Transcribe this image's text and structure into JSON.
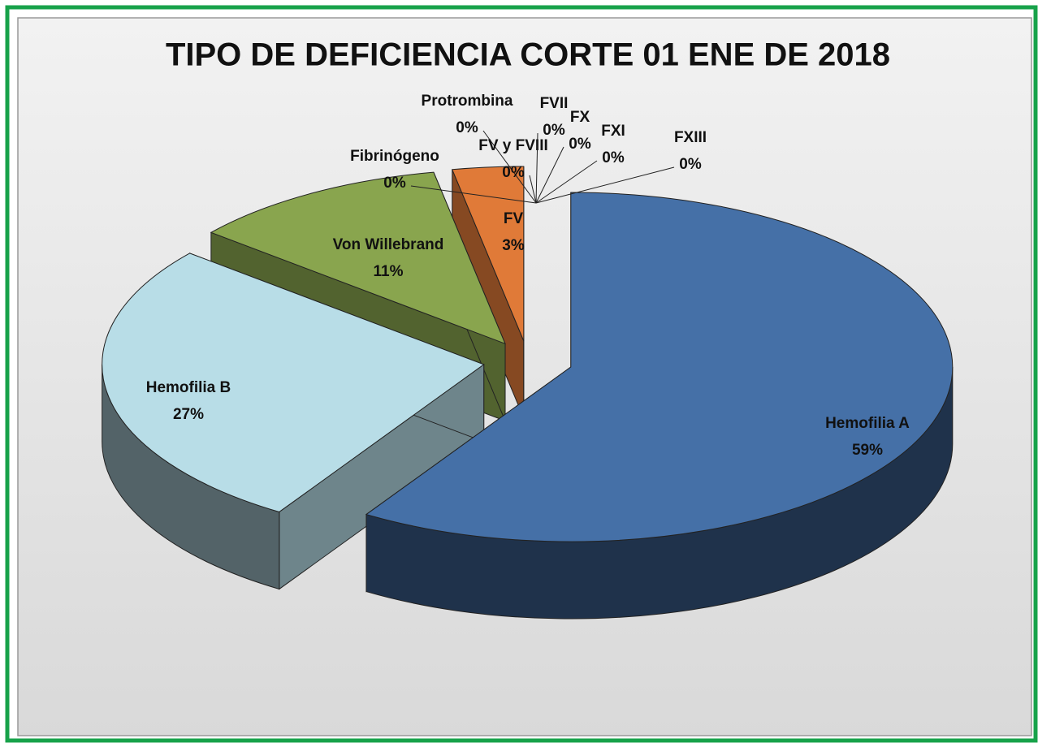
{
  "chart_data": {
    "type": "pie3d",
    "title": "TIPO DE DEFICIENCIA CORTE 01 ENE DE 2018",
    "categories": [
      "Hemofilia A",
      "Hemofilia B",
      "Von Willebrand",
      "Fibrinógeno",
      "Protrombina",
      "FV y FVIII",
      "FV",
      "FVII",
      "FX",
      "FXI",
      "FXIII"
    ],
    "values": [
      59,
      27,
      11,
      0,
      0,
      0,
      3,
      0,
      0,
      0,
      0
    ],
    "value_labels": [
      "59%",
      "27%",
      "11%",
      "0%",
      "0%",
      "0%",
      "3%",
      "0%",
      "0%",
      "0%",
      "0%"
    ],
    "colors": [
      "#4570a7",
      "#b8dde7",
      "#89a54e",
      "#1f4a5c",
      "#7a3b16",
      "#c6d9f1",
      "#e07a38",
      "#9bbb59",
      "#8064a2",
      "#4bacc6",
      "#f79646"
    ]
  }
}
